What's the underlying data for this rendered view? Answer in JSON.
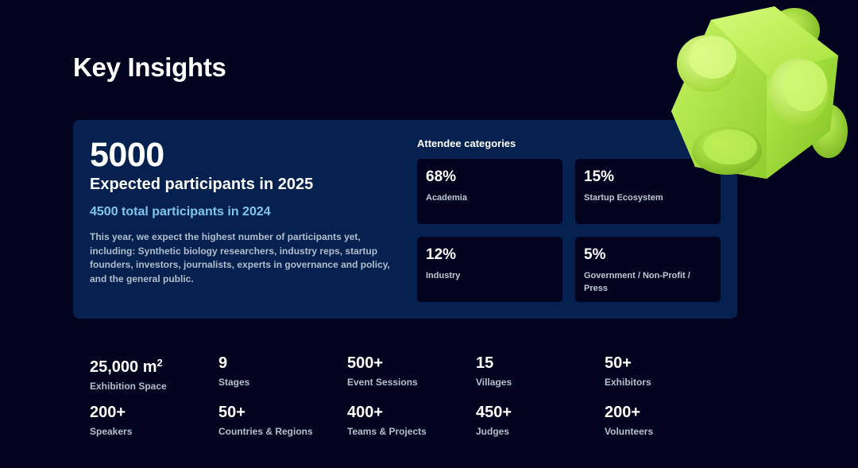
{
  "page": {
    "title": "Key Insights"
  },
  "hero": {
    "number": "5000",
    "subtitle": "Expected participants in 2025",
    "previous": "4500 total participants in 2024",
    "description": "This year, we expect the highest number of participants yet, including: Synthetic biology researchers, industry reps, startup founders, investors, journalists, experts in governance and policy, and the general public."
  },
  "categories": {
    "title": "Attendee categories",
    "items": [
      {
        "pct": "68%",
        "label": "Academia"
      },
      {
        "pct": "15%",
        "label": "Startup Ecosystem"
      },
      {
        "pct": "12%",
        "label": "Industry"
      },
      {
        "pct": "5%",
        "label": "Government / Non-Profit / Press"
      }
    ]
  },
  "stats": [
    {
      "value": "25,000 m",
      "sup": "2",
      "label": "Exhibition Space"
    },
    {
      "value": "9",
      "label": "Stages"
    },
    {
      "value": "500+",
      "label": "Event Sessions"
    },
    {
      "value": "15",
      "label": "Villages"
    },
    {
      "value": "50+",
      "label": "Exhibitors"
    },
    {
      "value": "200+",
      "label": "Speakers"
    },
    {
      "value": "50+",
      "label": "Countries & Regions"
    },
    {
      "value": "400+",
      "label": "Teams & Projects"
    },
    {
      "value": "450+",
      "label": "Judges"
    },
    {
      "value": "200+",
      "label": "Volunteers"
    }
  ],
  "colors": {
    "background": "#02031f",
    "card": "#04214f",
    "accent_text": "#7fc6ef",
    "cube": "#b7ef4f"
  },
  "decoration": {
    "icon": "lime-3d-block-icon"
  }
}
